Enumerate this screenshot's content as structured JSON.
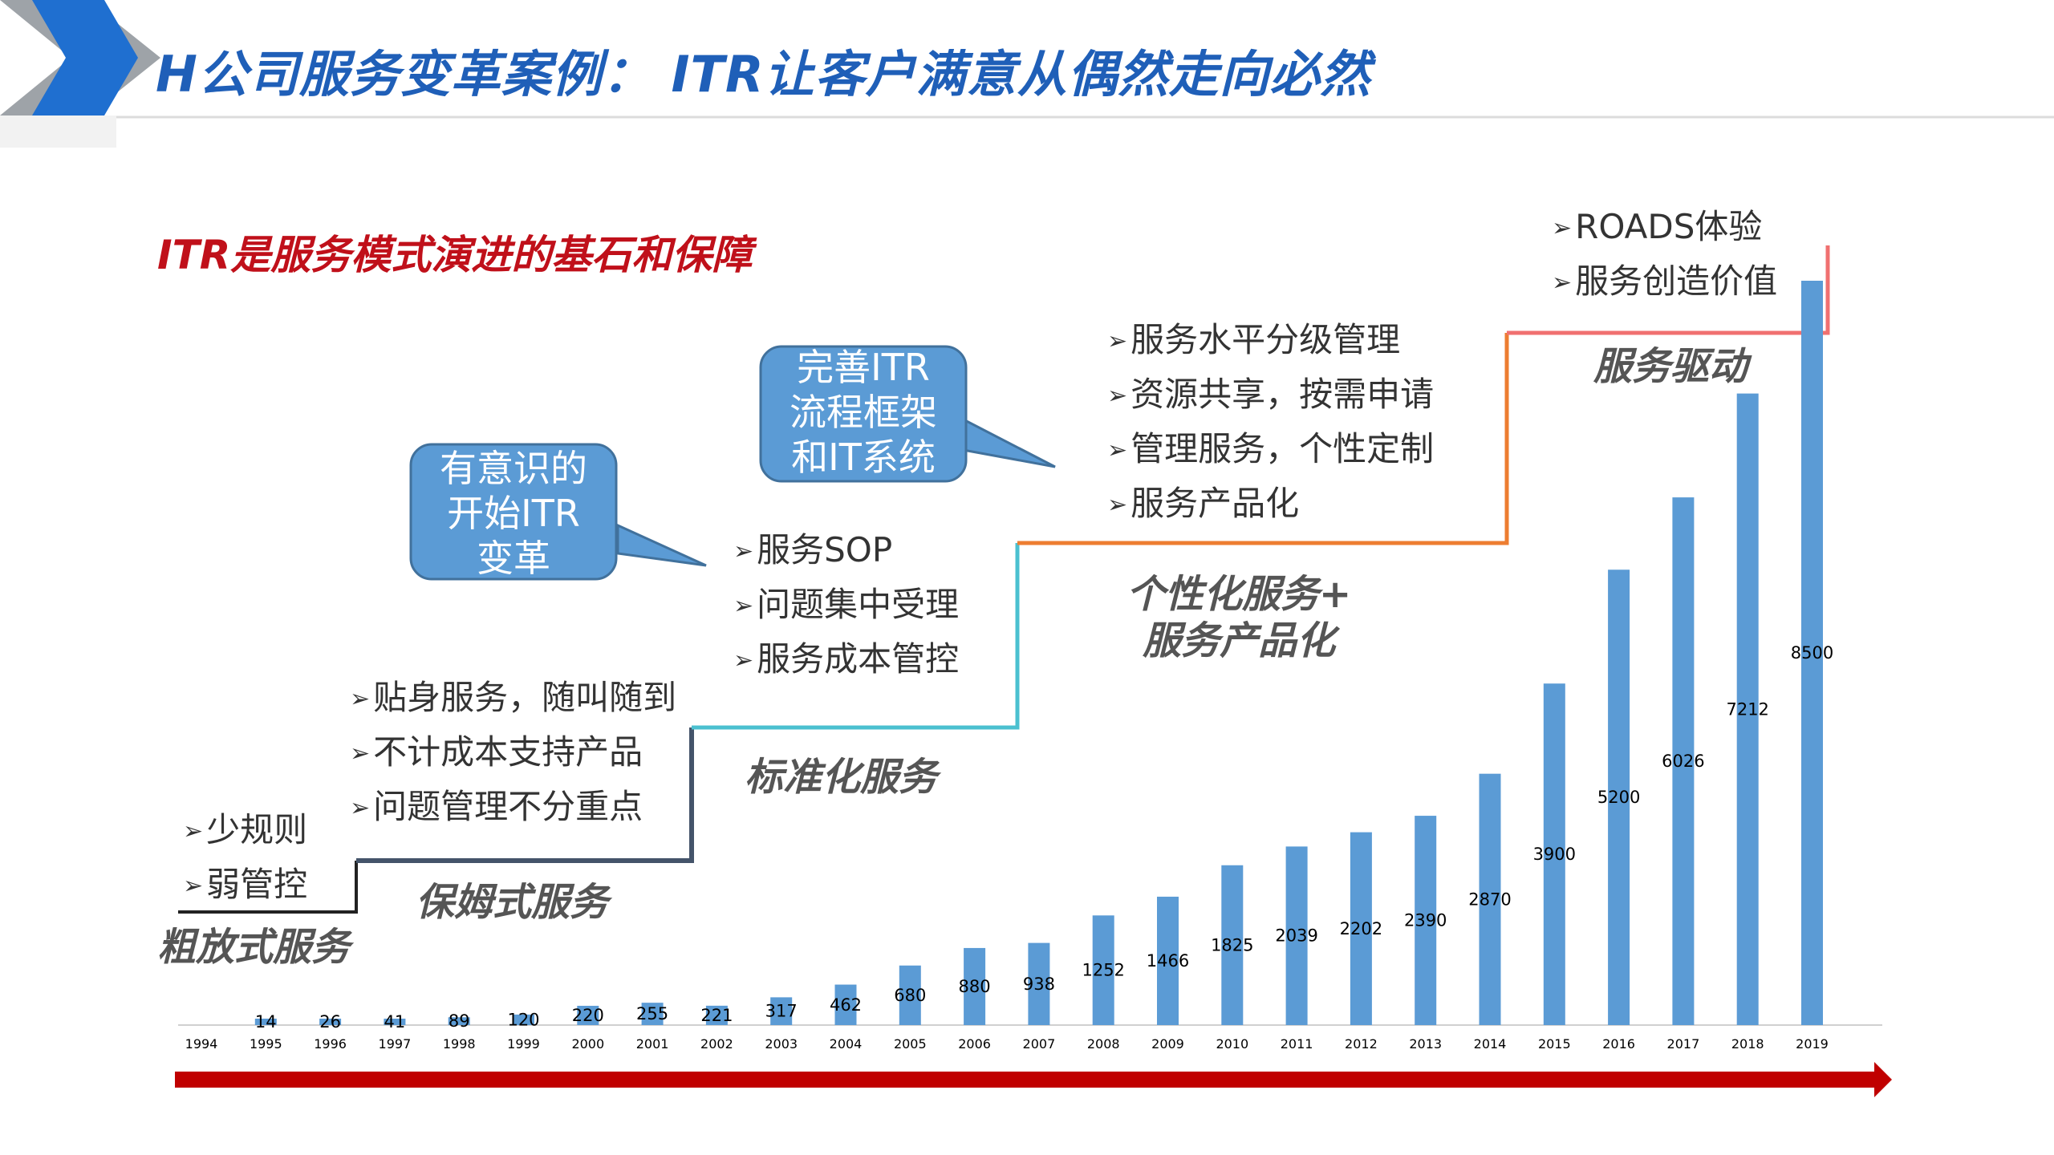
{
  "header": {
    "title": "H公司服务变革案例： ITR让客户满意从偶然走向必然",
    "subtitle": "ITR是服务模式演进的基石和保障"
  },
  "stages": [
    {
      "name": "粗放式服务",
      "bullets": [
        "少规则",
        "弱管控"
      ]
    },
    {
      "name": "保姆式服务",
      "bullets": [
        "贴身服务，随叫随到",
        "不计成本支持产品",
        "问题管理不分重点"
      ]
    },
    {
      "name": "标准化服务",
      "bullets": [
        "服务SOP",
        "问题集中受理",
        "服务成本管控"
      ]
    },
    {
      "name": "个性化服务+\n服务产品化",
      "bullets": [
        "服务水平分级管理",
        "资源共享，按需申请",
        "管理服务，个性定制",
        "服务产品化"
      ]
    },
    {
      "name": "服务驱动",
      "bullets": [
        "ROADS体验",
        "服务创造价值"
      ]
    }
  ],
  "callouts": [
    {
      "text": [
        "有意识的",
        "开始ITR",
        "变革"
      ]
    },
    {
      "text": [
        "完善ITR",
        "流程框架",
        "和IT系统"
      ]
    }
  ],
  "chart_data": {
    "type": "bar",
    "categories": [
      "1994",
      "1995",
      "1996",
      "1997",
      "1998",
      "1999",
      "2000",
      "2001",
      "2002",
      "2003",
      "2004",
      "2005",
      "2006",
      "2007",
      "2008",
      "2009",
      "2010",
      "2011",
      "2012",
      "2013",
      "2014",
      "2015",
      "2016",
      "2017",
      "2018",
      "2019"
    ],
    "values": [
      null,
      14,
      26,
      41,
      89,
      120,
      220,
      255,
      221,
      317,
      462,
      680,
      880,
      938,
      1252,
      1466,
      1825,
      2039,
      2202,
      2390,
      2870,
      3900,
      5200,
      6026,
      7212,
      8500
    ],
    "labels": [
      "",
      "14",
      "26",
      "41",
      "89",
      "120",
      "220",
      "255",
      "221",
      "317",
      "462",
      "680",
      "880",
      "938",
      "1252",
      "1466",
      "1825",
      "2039",
      "2202",
      "2390",
      "2870",
      "3900",
      "5200",
      "6026",
      "7212",
      "8500"
    ],
    "ylim": [
      0,
      8500
    ],
    "bar_color": "#5b9bd5",
    "grid": false
  },
  "colors": {
    "title_blue": "#1f5fb8",
    "subtitle_red": "#c0101a",
    "callout_fill": "#5b9bd5",
    "step_black": "#222222",
    "step_gray": "#44546a",
    "step_teal": "#4bc0d0",
    "step_orange": "#ed7d31",
    "step_red": "#f07070",
    "timeline_red": "#c00000"
  }
}
